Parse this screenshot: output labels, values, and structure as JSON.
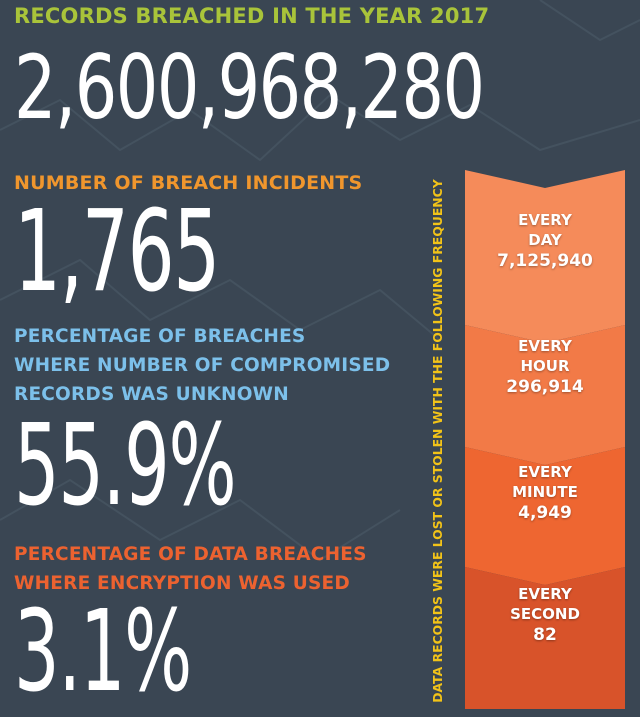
{
  "records": {
    "label": "RECORDS BREACHED IN THE YEAR 2017",
    "value": "2,600,968,280"
  },
  "incidents": {
    "label": "NUMBER OF BREACH INCIDENTS",
    "value": "1,765"
  },
  "unknown": {
    "label_lines": [
      "PERCENTAGE OF BREACHES",
      "WHERE NUMBER OF COMPROMISED",
      "RECORDS WAS UNKNOWN"
    ],
    "value": "55.9%"
  },
  "encryption": {
    "label_lines": [
      "PERCENTAGE OF DATA BREACHES",
      "WHERE ENCRYPTION WAS USED"
    ],
    "value": "3.1%"
  },
  "frequency": {
    "caption": "DATA RECORDS WERE LOST OR STOLEN WITH THE FOLLOWING FREQUENCY",
    "items": [
      {
        "period_lines": [
          "EVERY",
          "DAY"
        ],
        "count": "7,125,940",
        "color": "#f58b5a"
      },
      {
        "period_lines": [
          "EVERY",
          "HOUR"
        ],
        "count": "296,914",
        "color": "#f27a47"
      },
      {
        "period_lines": [
          "EVERY",
          "MINUTE"
        ],
        "count": "4,949",
        "color": "#ee6631"
      },
      {
        "period_lines": [
          "EVERY",
          "SECOND"
        ],
        "count": "82",
        "color": "#d8532a"
      }
    ]
  },
  "colors": {
    "background": "#3a4653",
    "title_green": "#a9c43a",
    "incidents_orange": "#f0962d",
    "unknown_blue": "#7cc0ea",
    "encryption_red": "#ec6230",
    "caption_yellow": "#f2c318"
  }
}
